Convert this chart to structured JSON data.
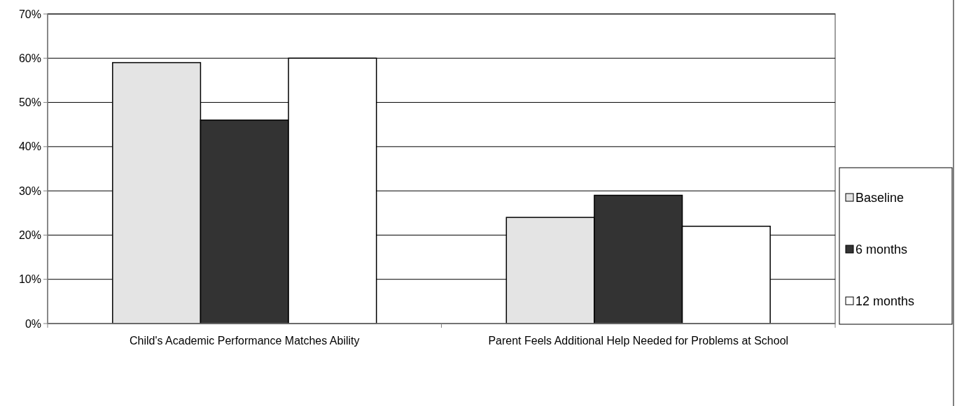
{
  "chart_data": {
    "type": "bar",
    "categories": [
      "Child's Academic Performance Matches Ability",
      "Parent Feels Additional Help Needed for Problems at School"
    ],
    "series": [
      {
        "name": "Baseline",
        "color": "#e4e4e4",
        "values": [
          59,
          24
        ]
      },
      {
        "name": "6 months",
        "color": "#333333",
        "values": [
          46,
          29
        ]
      },
      {
        "name": "12 months",
        "color": "#ffffff",
        "values": [
          60,
          22
        ]
      }
    ],
    "ylim": [
      0,
      70
    ],
    "yticks": [
      {
        "value": 0,
        "label": "0%"
      },
      {
        "value": 10,
        "label": "10%"
      },
      {
        "value": 20,
        "label": "20%"
      },
      {
        "value": 30,
        "label": "30%"
      },
      {
        "value": 40,
        "label": "40%"
      },
      {
        "value": 50,
        "label": "50%"
      },
      {
        "value": 60,
        "label": "60%"
      },
      {
        "value": 70,
        "label": "70%"
      }
    ],
    "grid": "y",
    "legend": "right"
  }
}
